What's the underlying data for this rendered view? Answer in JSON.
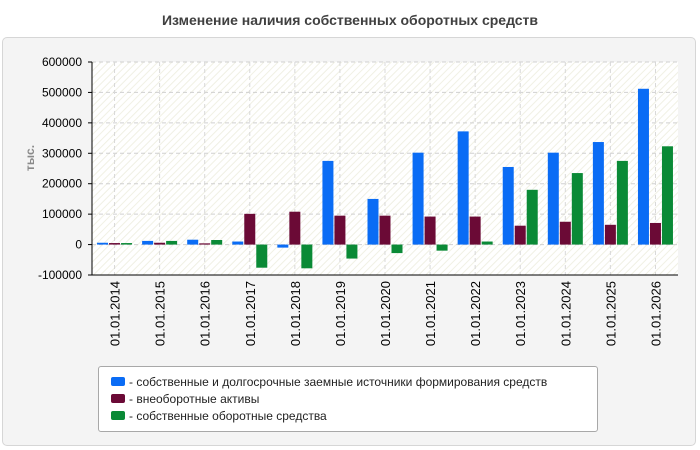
{
  "title": "Изменение наличия собственных оборотных средств",
  "chart_data": {
    "type": "bar",
    "ylabel": "тыс.",
    "ylim": [
      -100000,
      600000
    ],
    "yticks": [
      600000,
      500000,
      400000,
      300000,
      200000,
      100000,
      0,
      -100000
    ],
    "ytick_labels": [
      "600000",
      "500000",
      "400000",
      "300000",
      "200000",
      "100000",
      "0",
      "-100000"
    ],
    "categories": [
      "01.01.2014",
      "01.01.2015",
      "01.01.2016",
      "01.01.2017",
      "01.01.2018",
      "01.01.2019",
      "01.01.2020",
      "01.01.2021",
      "01.01.2022",
      "01.01.2023",
      "01.01.2024",
      "01.01.2025",
      "01.01.2026"
    ],
    "series": [
      {
        "name": "- собственные и долгосрочные заемные источники формирования средств",
        "color": "#0a6cf5",
        "values": [
          6000,
          12000,
          16000,
          10000,
          -10000,
          275000,
          150000,
          302000,
          372000,
          255000,
          302000,
          337000,
          512000
        ]
      },
      {
        "name": "- внеоборотные активы",
        "color": "#6b0a36",
        "values": [
          5000,
          6000,
          4000,
          101000,
          108000,
          95000,
          95000,
          92000,
          92000,
          62000,
          75000,
          65000,
          71000
        ]
      },
      {
        "name": "- собственные оборотные средства",
        "color": "#0a8a36",
        "values": [
          5000,
          12000,
          15000,
          -76000,
          -78000,
          -46000,
          -28000,
          -20000,
          10000,
          180000,
          235000,
          275000,
          323000
        ]
      }
    ],
    "grid": true,
    "legend_position": "bottom"
  }
}
